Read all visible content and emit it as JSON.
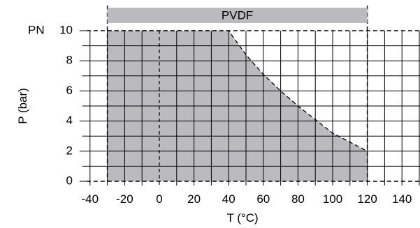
{
  "chart_data": {
    "type": "area",
    "title": "",
    "banner_label": "PVDF",
    "xlabel": "T (°C)",
    "ylabel": "P (bar)",
    "y_extra_label": "PN",
    "xlim": [
      -40,
      150
    ],
    "ylim": [
      0,
      10
    ],
    "x_ticks": [
      -40,
      -20,
      0,
      20,
      40,
      60,
      80,
      100,
      120,
      140
    ],
    "y_ticks": [
      0,
      2,
      4,
      6,
      8,
      10
    ],
    "grid": true,
    "temperature_range": [
      -30,
      120
    ],
    "series": [
      {
        "x": [
          -30,
          40,
          50,
          60,
          70,
          80,
          90,
          100,
          110,
          120
        ],
        "y": [
          10,
          10,
          8.4,
          7.1,
          6.0,
          5.0,
          4.1,
          3.2,
          2.6,
          2.0
        ]
      }
    ],
    "colors": {
      "fill": "#bbbbbf",
      "banner": "#bbbbbf",
      "grid": "#000000"
    }
  }
}
